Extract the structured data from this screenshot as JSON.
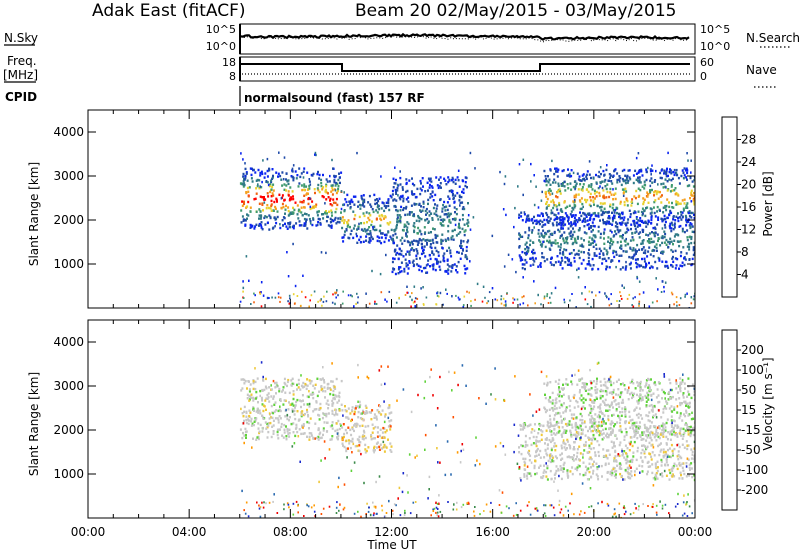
{
  "header": {
    "station": "Adak East (fitACF)",
    "beam_date": "Beam 20 02/May/2015 - 03/May/2015"
  },
  "strip": {
    "nsky_label": "N.Sky",
    "nsearch_label": "N.Search",
    "freq_label_line1": "Freq.",
    "freq_label_line2": "[MHz]",
    "nave_label": "Nave",
    "cpid_label": "CPID",
    "cpid_text": "normalsound (fast) 157 RF",
    "noise_ticks_left": [
      "10^5",
      "10^0"
    ],
    "noise_ticks_right": [
      "10^5",
      "10^0"
    ],
    "freq_ticks_left": [
      "18",
      "8"
    ],
    "nave_ticks_right": [
      "60",
      "0"
    ]
  },
  "colors": {
    "power_scale": [
      "#0a24f0",
      "#1f4aa8",
      "#2f7a86",
      "#3f9a6e",
      "#e8d230",
      "#f5a020",
      "#f06010",
      "#ff0000"
    ],
    "velocity_scale": [
      "#ee0000",
      "#ff5000",
      "#ff9a00",
      "#eec83a",
      "#c8c8c8",
      "#5fd23a",
      "#3b8a4a",
      "#2a6ab0",
      "#1a2acc"
    ]
  },
  "chart_data": [
    {
      "type": "heatmap",
      "name": "power",
      "xlabel": "Time UT",
      "ylabel": "Slant Range [km]",
      "xlim": [
        0,
        24
      ],
      "ylim": [
        0,
        4500
      ],
      "x_ticks": [
        "00:00",
        "04:00",
        "08:00",
        "12:00",
        "16:00",
        "20:00",
        "00:00"
      ],
      "y_ticks": [
        1000,
        2000,
        3000,
        4000
      ],
      "colorbar_label": "Power [dB]",
      "colorbar_ticks": [
        "4",
        "8",
        "12",
        "16",
        "20",
        "24",
        "28"
      ],
      "echo_bands": [
        {
          "t_start": 6.0,
          "t_end": 10.0,
          "range_min": 1800,
          "range_max": 3200,
          "peak_db": 28
        },
        {
          "t_start": 10.0,
          "t_end": 12.0,
          "range_min": 1500,
          "range_max": 2600,
          "peak_db": 18
        },
        {
          "t_start": 12.0,
          "t_end": 15.0,
          "range_min": 800,
          "range_max": 3000,
          "peak_db": 8
        },
        {
          "t_start": 18.0,
          "t_end": 24.0,
          "range_min": 1900,
          "range_max": 3200,
          "peak_db": 20
        },
        {
          "t_start": 17.0,
          "t_end": 24.0,
          "range_min": 900,
          "range_max": 2200,
          "peak_db": 8
        }
      ]
    },
    {
      "type": "heatmap",
      "name": "velocity",
      "xlabel": "Time UT",
      "ylabel": "Slant Range [km]",
      "xlim": [
        0,
        24
      ],
      "ylim": [
        0,
        4500
      ],
      "x_ticks": [
        "00:00",
        "04:00",
        "08:00",
        "12:00",
        "16:00",
        "20:00",
        "00:00"
      ],
      "y_ticks": [
        1000,
        2000,
        3000,
        4000
      ],
      "colorbar_label": "Velocity [m s⁻¹]",
      "colorbar_ticks": [
        "200",
        "100",
        "50",
        "15",
        "-15",
        "-50",
        "-100",
        "-200"
      ],
      "echo_bands": [
        {
          "t_start": 6.0,
          "t_end": 10.0,
          "range_min": 1800,
          "range_max": 3200,
          "dominant_velocity": 0
        },
        {
          "t_start": 10.0,
          "t_end": 12.0,
          "range_min": 1500,
          "range_max": 2600,
          "dominant_velocity": -30
        },
        {
          "t_start": 18.0,
          "t_end": 24.0,
          "range_min": 1900,
          "range_max": 3200,
          "dominant_velocity": 20
        },
        {
          "t_start": 17.0,
          "t_end": 24.0,
          "range_min": 900,
          "range_max": 2200,
          "dominant_velocity": 0
        }
      ]
    }
  ]
}
